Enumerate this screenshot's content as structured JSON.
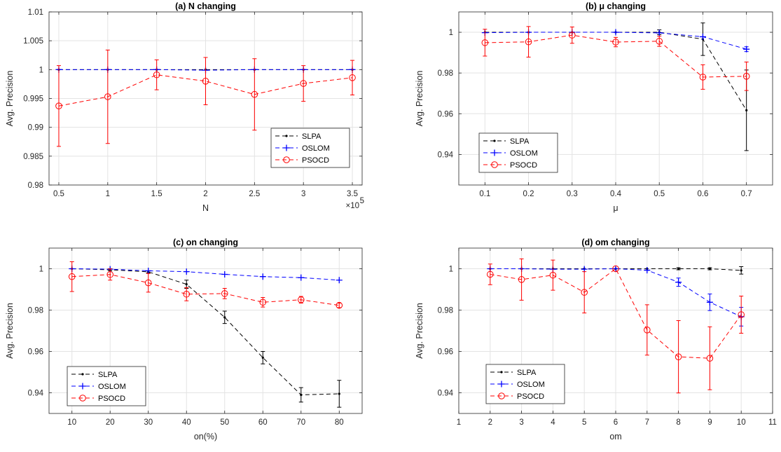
{
  "colors": {
    "SLPA": "#000000",
    "OSLOM": "#0000ff",
    "PSOCD": "#ff0000",
    "grid": "#e3e3e3",
    "axis": "#262626"
  },
  "chart_data": [
    {
      "type": "line",
      "title": "(a) N changing",
      "xlabel": "N",
      "ylabel": "Avg. Precision",
      "x_multiplier_label": "×10",
      "x_multiplier_exp": "5",
      "x": [
        0.5,
        1,
        1.5,
        2,
        2.5,
        3,
        3.5
      ],
      "xticks": [
        0.5,
        1,
        1.5,
        2,
        2.5,
        3,
        3.5
      ],
      "xtick_labels": [
        "0.5",
        "1",
        "1.5",
        "2",
        "2.5",
        "3",
        "3.5"
      ],
      "xlim": [
        0.4,
        3.6
      ],
      "ylim": [
        0.98,
        1.01
      ],
      "yticks": [
        0.98,
        0.985,
        0.99,
        0.995,
        1,
        1.005,
        1.01
      ],
      "ytick_labels": [
        "0.98",
        "0.985",
        "0.99",
        "0.995",
        "1",
        "1.005",
        "1.01"
      ],
      "grid": true,
      "legend_position": "right",
      "series": [
        {
          "name": "SLPA",
          "values": [
            1.0,
            1.0,
            1.0,
            1.0,
            1.0,
            1.0,
            1.0
          ],
          "errors": [
            0,
            0,
            0,
            0,
            0,
            0,
            0
          ]
        },
        {
          "name": "OSLOM",
          "values": [
            1.0,
            1.0,
            1.0,
            0.9999,
            1.0,
            1.0,
            1.0
          ],
          "errors": [
            0,
            0,
            0,
            0,
            0,
            0,
            0
          ]
        },
        {
          "name": "PSOCD",
          "values": [
            0.9937,
            0.9953,
            0.9991,
            0.998,
            0.9957,
            0.9976,
            0.9986
          ],
          "errors": [
            0.007,
            0.0081,
            0.0026,
            0.0041,
            0.0062,
            0.0031,
            0.003
          ]
        }
      ]
    },
    {
      "type": "line",
      "title": "(b)  μ changing",
      "xlabel": "μ",
      "ylabel": "Avg. Precision",
      "x": [
        0.1,
        0.2,
        0.3,
        0.4,
        0.5,
        0.6,
        0.7
      ],
      "xticks": [
        0.1,
        0.2,
        0.3,
        0.4,
        0.5,
        0.6,
        0.7
      ],
      "xtick_labels": [
        "0.1",
        "0.2",
        "0.3",
        "0.4",
        "0.5",
        "0.6",
        "0.7"
      ],
      "xlim": [
        0.04,
        0.76
      ],
      "ylim": [
        0.925,
        1.01
      ],
      "yticks": [
        0.94,
        0.96,
        0.98,
        1
      ],
      "ytick_labels": [
        "0.94",
        "0.96",
        "0.98",
        "1"
      ],
      "grid": true,
      "legend_position": "bottom-left",
      "series": [
        {
          "name": "SLPA",
          "values": [
            1.0,
            1.0,
            1.0,
            1.0,
            1.0,
            0.9966,
            0.9617
          ],
          "errors": [
            0,
            0,
            0,
            0,
            0.0012,
            0.008,
            0.0198
          ]
        },
        {
          "name": "OSLOM",
          "values": [
            0.9998,
            1.0,
            1.0,
            1.0,
            0.9997,
            0.9978,
            0.9917
          ],
          "errors": [
            0,
            0,
            0,
            0,
            0,
            0,
            0.0012
          ]
        },
        {
          "name": "PSOCD",
          "values": [
            0.9949,
            0.9953,
            0.9986,
            0.9952,
            0.9956,
            0.978,
            0.9784
          ],
          "errors": [
            0.0066,
            0.0075,
            0.004,
            0.0023,
            0.0025,
            0.006,
            0.007
          ]
        }
      ]
    },
    {
      "type": "line",
      "title": "(c) on changing",
      "xlabel": "on(%)",
      "ylabel": "Avg. Precision",
      "x": [
        10,
        20,
        30,
        40,
        50,
        60,
        70,
        80
      ],
      "xticks": [
        10,
        20,
        30,
        40,
        50,
        60,
        70,
        80
      ],
      "xtick_labels": [
        "10",
        "20",
        "30",
        "40",
        "50",
        "60",
        "70",
        "80"
      ],
      "xlim": [
        4,
        86
      ],
      "ylim": [
        0.93,
        1.01
      ],
      "yticks": [
        0.94,
        0.96,
        0.98,
        1
      ],
      "ytick_labels": [
        "0.94",
        "0.96",
        "0.98",
        "1"
      ],
      "grid": true,
      "legend_position": "bottom-left",
      "series": [
        {
          "name": "SLPA",
          "values": [
            1.0,
            0.9995,
            0.9985,
            0.9925,
            0.9765,
            0.957,
            0.939,
            0.9395
          ],
          "errors": [
            0,
            0.0005,
            0.0005,
            0.002,
            0.003,
            0.003,
            0.0035,
            0.0065
          ]
        },
        {
          "name": "OSLOM",
          "values": [
            1.0,
            0.9998,
            0.999,
            0.9986,
            0.9973,
            0.9962,
            0.9957,
            0.9945
          ],
          "errors": [
            0,
            0,
            0,
            0,
            0,
            0,
            0,
            0
          ]
        },
        {
          "name": "PSOCD",
          "values": [
            0.9962,
            0.9972,
            0.9932,
            0.9877,
            0.988,
            0.9838,
            0.985,
            0.9823
          ],
          "errors": [
            0.0072,
            0.0027,
            0.0045,
            0.0032,
            0.0025,
            0.0023,
            0.0016,
            0.0011
          ]
        }
      ]
    },
    {
      "type": "line",
      "title": "(d) om changing",
      "xlabel": "om",
      "ylabel": "Avg. Precision",
      "x": [
        2,
        3,
        4,
        5,
        6,
        7,
        8,
        9,
        10
      ],
      "xticks": [
        1,
        2,
        3,
        4,
        5,
        6,
        7,
        8,
        9,
        10,
        11
      ],
      "xtick_labels": [
        "1",
        "2",
        "3",
        "4",
        "5",
        "6",
        "7",
        "8",
        "9",
        "10",
        "11"
      ],
      "xlim": [
        1,
        11
      ],
      "ylim": [
        0.93,
        1.01
      ],
      "yticks": [
        0.94,
        0.96,
        0.98,
        1
      ],
      "ytick_labels": [
        "0.94",
        "0.96",
        "0.98",
        "1"
      ],
      "grid": true,
      "legend_position": "bottom-left",
      "series": [
        {
          "name": "SLPA",
          "values": [
            1.0,
            1.0,
            1.0,
            1.0,
            1.0,
            1.0,
            1.0,
            1.0,
            0.9992
          ],
          "errors": [
            0,
            0,
            0,
            0,
            0,
            0,
            0.0005,
            0.0005,
            0.0018
          ]
        },
        {
          "name": "OSLOM",
          "values": [
            1.0,
            1.0,
            0.9998,
            0.9998,
            1.0,
            0.9993,
            0.9935,
            0.9838,
            0.9768
          ],
          "errors": [
            0,
            0,
            0,
            0,
            0,
            0,
            0.002,
            0.004,
            0.0045
          ]
        },
        {
          "name": "PSOCD",
          "values": [
            0.9973,
            0.9948,
            0.9969,
            0.9886,
            1.0,
            0.9704,
            0.9574,
            0.9567,
            0.9778
          ],
          "errors": [
            0.005,
            0.01,
            0.0073,
            0.01,
            0,
            0.0122,
            0.0175,
            0.0152,
            0.009
          ]
        }
      ]
    }
  ]
}
